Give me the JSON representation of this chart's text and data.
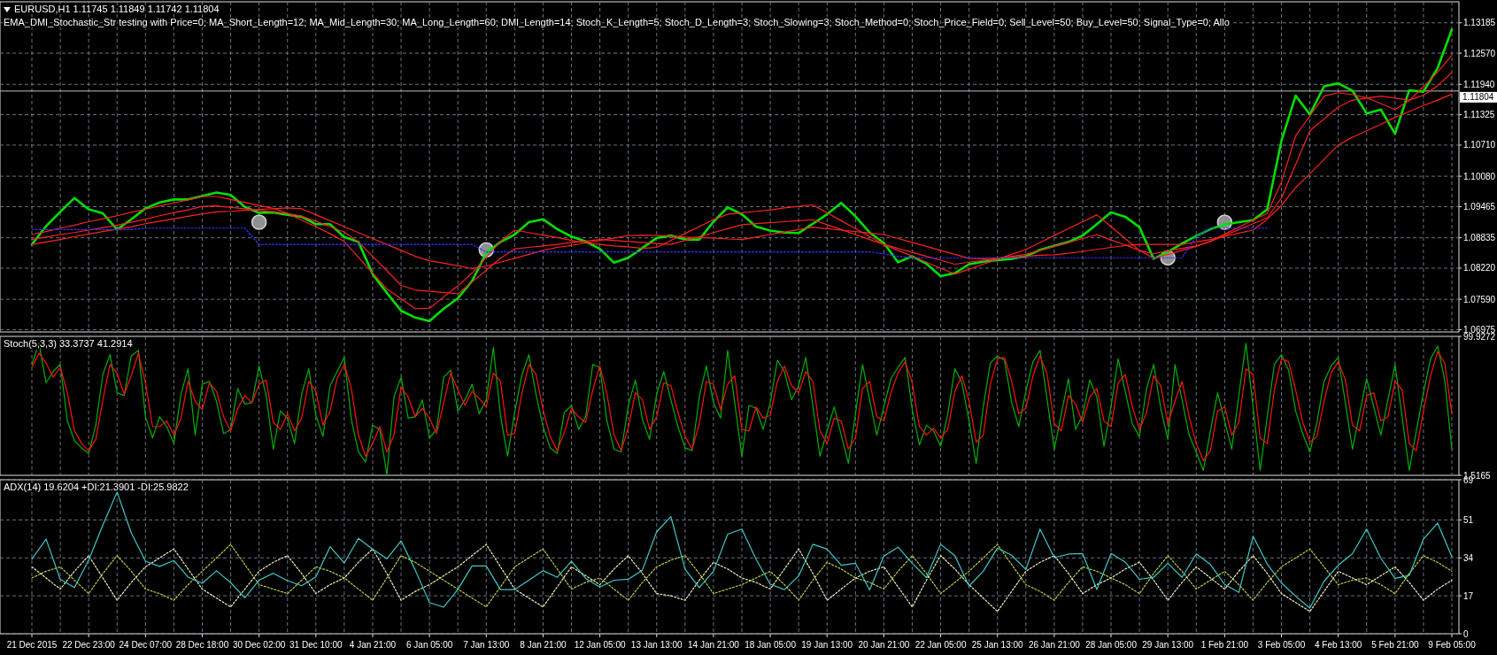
{
  "chart_data": [
    {
      "type": "line",
      "title": "EURUSD,H1 1.11745 1.11849 1.11742 1.11804",
      "subtitle": "EMA_DMI_Stochastic_Str testing with Price=0; MA_Short_Length=12; MA_Mid_Length=30; MA_Long_Length=60; DMI_Length=14; Stoch_K_Length=5; Stoch_D_Length=3; Stoch_Slowing=3; Stoch_Method=0; Stoch_Price_Field=0; Sell_Level=50; Buy_Level=50; Signal_Type=0; Allo",
      "ylim": [
        1.0693,
        1.1361
      ],
      "grid": true,
      "tick_labels": "y",
      "yticks": [
        1.06975,
        {
          "value": 1.0759,
          "label": "1.07590"
        },
        {
          "value": 1.0822,
          "label": "1.08220"
        },
        1.08835,
        1.09465,
        {
          "value": 1.1008,
          "label": "1.10080"
        },
        {
          "value": 1.1071,
          "label": "1.10710"
        },
        1.11325,
        {
          "value": 1.1194,
          "label": "1.11940"
        },
        {
          "value": 1.1257,
          "label": "1.12570"
        },
        1.13185
      ],
      "ref_lines": [
        {
          "axis": "y",
          "value": 1.11804,
          "label": "1.11804",
          "color": "#c0c0c0"
        }
      ],
      "series": [
        {
          "type": "line",
          "color": "#00e000",
          "values": [
            1.087,
            1.0907,
            1.0936,
            1.0964,
            1.0941,
            1.0933,
            1.09,
            1.0921,
            1.0943,
            1.0955,
            1.0961,
            1.0961,
            1.0968,
            1.0975,
            1.097,
            1.0946,
            1.0934,
            1.0935,
            1.093,
            1.0926,
            1.0911,
            1.0911,
            1.0885,
            1.0875,
            1.081,
            1.0772,
            1.0736,
            1.0722,
            1.0715,
            1.074,
            1.0761,
            1.0796,
            1.0853,
            1.0875,
            1.089,
            1.0915,
            1.0921,
            1.0901,
            1.0886,
            1.0876,
            1.0861,
            1.0833,
            1.0843,
            1.0863,
            1.0883,
            1.0888,
            1.088,
            1.088,
            1.0916,
            1.0945,
            1.0931,
            1.0906,
            1.0898,
            1.0894,
            1.0893,
            1.0912,
            1.0931,
            1.0954,
            1.0927,
            1.0894,
            1.0873,
            1.0834,
            1.0846,
            1.0831,
            1.0806,
            1.0812,
            1.083,
            1.0835,
            1.0838,
            1.0841,
            1.0846,
            1.0859,
            1.0867,
            1.0875,
            1.0888,
            1.0911,
            1.0935,
            1.0926,
            1.0905,
            1.0841,
            1.0855,
            1.0872,
            1.0887,
            1.0901,
            1.091,
            1.0915,
            1.0919,
            1.0941,
            1.108,
            1.1171,
            1.1133,
            1.119,
            1.1196,
            1.1181,
            1.1135,
            1.1143,
            1.1094,
            1.1182,
            1.1179,
            1.1227,
            1.1305
          ]
        },
        {
          "type": "line",
          "color": "#ff2020",
          "values": [
            1.087,
            1.0875,
            1.088,
            1.0886,
            1.0891,
            1.0896,
            1.0901,
            1.0906,
            1.0912,
            1.0917,
            1.0922,
            1.0927,
            1.0932,
            1.0936,
            1.0937,
            1.0939,
            1.0941,
            1.0942,
            1.0944,
            1.0942,
            1.093,
            1.0918,
            1.0906,
            1.0894,
            1.0882,
            1.087,
            1.0858,
            1.0846,
            1.0837,
            1.0832,
            1.0827,
            1.0821,
            1.0826,
            1.0834,
            1.0842,
            1.085,
            1.0858,
            1.0864,
            1.0868,
            1.0873,
            1.0878,
            1.0883,
            1.0888,
            1.0889,
            1.0888,
            1.0887,
            1.0885,
            1.0884,
            1.0883,
            1.0881,
            1.088,
            1.0885,
            1.089,
            1.0895,
            1.09,
            1.0905,
            1.0902,
            1.0899,
            1.0896,
            1.0893,
            1.089,
            1.0882,
            1.0874,
            1.0866,
            1.0858,
            1.085,
            1.0842,
            1.0841,
            1.0843,
            1.0844,
            1.0846,
            1.0848,
            1.0849,
            1.0852,
            1.0856,
            1.086,
            1.0864,
            1.0868,
            1.087,
            1.087,
            1.087,
            1.087,
            1.0875,
            1.088,
            1.0886,
            1.0893,
            1.0899,
            1.0921,
            1.0949,
            1.0985,
            1.1013,
            1.1042,
            1.1071,
            1.1087,
            1.11,
            1.1113,
            1.1127,
            1.1139,
            1.1151,
            1.1162,
            1.1174
          ]
        },
        {
          "type": "line",
          "color": "#ff2020",
          "values": [
            1.088,
            1.0885,
            1.089,
            1.0894,
            1.0899,
            1.0904,
            1.0909,
            1.0915,
            1.0921,
            1.0928,
            1.0934,
            1.094,
            1.0947,
            1.0948,
            1.0945,
            1.0942,
            1.0939,
            1.0936,
            1.0933,
            1.0927,
            1.0917,
            1.0906,
            1.0895,
            1.0875,
            1.0846,
            1.0817,
            1.0787,
            1.0778,
            1.0775,
            1.0773,
            1.077,
            1.0794,
            1.0818,
            1.0842,
            1.0861,
            1.0864,
            1.0867,
            1.087,
            1.0874,
            1.0877,
            1.088,
            1.0878,
            1.0876,
            1.0874,
            1.0872,
            1.087,
            1.0878,
            1.0886,
            1.0894,
            1.0902,
            1.091,
            1.0912,
            1.0914,
            1.0916,
            1.0918,
            1.092,
            1.091,
            1.09,
            1.089,
            1.088,
            1.087,
            1.0862,
            1.0854,
            1.0846,
            1.0838,
            1.083,
            1.0834,
            1.0838,
            1.0842,
            1.0846,
            1.085,
            1.0858,
            1.0866,
            1.0874,
            1.0882,
            1.089,
            1.0879,
            1.0869,
            1.0858,
            1.0851,
            1.0857,
            1.0862,
            1.0867,
            1.0876,
            1.0888,
            1.09,
            1.0912,
            1.0924,
            1.0964,
            1.1032,
            1.11,
            1.1124,
            1.1148,
            1.1162,
            1.1166,
            1.117,
            1.1166,
            1.1162,
            1.1172,
            1.1191,
            1.1218
          ]
        },
        {
          "type": "line",
          "color": "#ff2020",
          "values": [
            1.089,
            1.0896,
            1.0903,
            1.0909,
            1.0916,
            1.0922,
            1.0928,
            1.0935,
            1.0941,
            1.0948,
            1.0954,
            1.096,
            1.0967,
            1.0967,
            1.0961,
            1.0955,
            1.0949,
            1.0943,
            1.0933,
            1.0919,
            1.0906,
            1.0892,
            1.0876,
            1.0844,
            1.0812,
            1.078,
            1.076,
            1.074,
            1.0741,
            1.0764,
            1.0786,
            1.0812,
            1.0844,
            1.0876,
            1.0899,
            1.0894,
            1.0889,
            1.0884,
            1.0878,
            1.0873,
            1.087,
            1.0867,
            1.0865,
            1.0862,
            1.0864,
            1.0878,
            1.0892,
            1.0906,
            1.092,
            1.0931,
            1.0934,
            1.0937,
            1.094,
            1.0944,
            1.0947,
            1.095,
            1.0934,
            1.0918,
            1.0902,
            1.0886,
            1.087,
            1.0858,
            1.0846,
            1.0834,
            1.0822,
            1.081,
            1.082,
            1.083,
            1.084,
            1.085,
            1.086,
            1.0874,
            1.0888,
            1.0902,
            1.0916,
            1.093,
            1.0906,
            1.0882,
            1.0858,
            1.0842,
            1.085,
            1.0858,
            1.0866,
            1.0877,
            1.0891,
            1.0905,
            1.0919,
            1.0933,
            1.0996,
            1.109,
            1.113,
            1.117,
            1.1177,
            1.1173,
            1.1167,
            1.1155,
            1.1143,
            1.1161,
            1.1189,
            1.1219,
            1.1253
          ]
        },
        {
          "type": "line",
          "color": "#3030ff",
          "line_style": "dotted",
          "values": [
            1.09,
            1.09,
            1.09,
            1.09,
            1.09,
            1.09,
            1.09,
            1.09,
            1.0903,
            1.0903,
            1.0903,
            1.0903,
            1.0903,
            1.0903,
            1.0903,
            1.0903,
            1.087,
            1.087,
            1.087,
            1.087,
            1.087,
            1.087,
            1.087,
            1.087,
            1.087,
            1.087,
            1.087,
            1.087,
            1.087,
            1.087,
            1.087,
            1.087,
            1.0855,
            1.0855,
            1.0855,
            1.0855,
            1.0855,
            1.0855,
            1.0855,
            1.0855,
            1.0855,
            1.0855,
            1.0855,
            1.0855,
            1.0855,
            1.0855,
            1.0855,
            1.0855,
            1.0855,
            1.0855,
            1.0855,
            1.0855,
            1.0855,
            1.0855,
            1.0855,
            1.0855,
            1.0855,
            1.0855,
            1.0855,
            1.0855,
            1.0851,
            1.0846,
            1.0843,
            1.0843,
            1.0843,
            1.0843,
            1.0843,
            1.0843,
            1.0843,
            1.0843,
            1.0843,
            1.0843,
            1.0843,
            1.0843,
            1.0843,
            1.0843,
            1.0843,
            1.0843,
            1.0843,
            1.0843,
            1.0843,
            1.0843,
            1.0886,
            1.0903,
            1.0903,
            1.0903,
            1.0903,
            1.0903,
            null,
            null,
            null,
            null,
            null,
            null,
            null,
            null,
            null,
            null,
            null,
            null,
            null
          ]
        },
        {
          "type": "scatter",
          "color": "#909090",
          "marker": "circle",
          "values": [
            null,
            null,
            null,
            null,
            null,
            null,
            null,
            null,
            null,
            null,
            null,
            null,
            null,
            null,
            null,
            null,
            1.0915,
            null,
            null,
            null,
            null,
            null,
            null,
            null,
            null,
            null,
            null,
            null,
            null,
            null,
            null,
            null,
            1.0859,
            null,
            null,
            null,
            null,
            null,
            null,
            null,
            null,
            null,
            null,
            null,
            null,
            null,
            null,
            null,
            null,
            null,
            null,
            null,
            null,
            null,
            null,
            null,
            null,
            null,
            null,
            null,
            null,
            null,
            null,
            null,
            null,
            null,
            null,
            null,
            null,
            null,
            null,
            null,
            null,
            null,
            null,
            null,
            null,
            null,
            null,
            null,
            1.0843,
            null,
            null,
            null,
            1.0915,
            null,
            null,
            null,
            null,
            null,
            null,
            null,
            null,
            null,
            null,
            null,
            null,
            null,
            null,
            null,
            null
          ]
        }
      ]
    },
    {
      "type": "line",
      "title": "Stoch(5,3,3) 33.3737 41.2914",
      "ylim": [
        1.5165,
        99.9272
      ],
      "grid": "x",
      "tick_labels": "y",
      "yticks": [
        99.9272,
        1.5165
      ],
      "series": [
        {
          "type": "line",
          "color": "#00b000",
          "values": [
            80,
            95,
            67,
            75,
            80,
            40,
            26,
            21,
            17,
            37,
            73,
            87,
            60,
            58,
            86,
            90,
            43,
            28,
            43,
            36,
            24,
            59,
            77,
            30,
            66,
            68,
            54,
            31,
            34,
            63,
            52,
            53,
            79,
            58,
            20,
            47,
            42,
            24,
            59,
            77,
            44,
            29,
            65,
            75,
            85,
            41,
            18,
            11,
            37,
            34,
            2,
            57,
            71,
            42,
            43,
            55,
            28,
            34,
            71,
            76,
            47,
            55,
            66,
            45,
            55,
            92,
            44,
            15,
            46,
            72,
            87,
            59,
            36,
            21,
            17,
            46,
            51,
            34,
            43,
            80,
            78,
            40,
            20,
            18,
            51,
            69,
            41,
            27,
            59,
            75,
            55,
            36,
            21,
            19,
            57,
            79,
            53,
            42,
            90,
            53,
            15,
            51,
            49,
            34,
            53,
            83,
            75,
            55,
            65,
            85,
            51,
            15,
            33,
            50,
            30,
            10,
            45,
            80,
            55,
            30,
            50,
            70,
            78,
            85,
            48,
            23,
            37,
            33,
            22,
            45,
            77,
            67,
            40,
            10,
            50,
            81,
            86,
            83,
            53,
            36,
            61,
            82,
            90,
            55,
            20,
            45,
            70,
            34,
            44,
            69,
            57,
            22,
            50,
            84,
            61,
            38,
            29,
            63,
            80,
            49,
            27,
            80,
            55,
            30,
            18,
            5,
            33,
            60,
            40,
            20,
            58,
            95,
            50,
            5,
            43,
            80,
            87,
            76,
            47,
            31,
            18,
            39,
            68,
            79,
            85,
            53,
            20,
            45,
            70,
            50,
            30,
            55,
            80,
            43,
            5,
            33,
            60,
            84,
            93,
            69,
            20
          ]
        },
        {
          "type": "line",
          "color": "#ff1010",
          "values": [
            78,
            88,
            81,
            71,
            78,
            60,
            33,
            24,
            19,
            27,
            55,
            80,
            74,
            59,
            72,
            88,
            67,
            36,
            36,
            40,
            30,
            42,
            68,
            54,
            48,
            67,
            61,
            43,
            33,
            49,
            58,
            53,
            66,
            69,
            39,
            34,
            45,
            33,
            42,
            68,
            61,
            37,
            47,
            70,
            80,
            63,
            30,
            15,
            24,
            36,
            18,
            30,
            64,
            57,
            43,
            49,
            42,
            31,
            53,
            74,
            62,
            51,
            61,
            56,
            50,
            74,
            68,
            30,
            31,
            59,
            80,
            73,
            48,
            29,
            19,
            32,
            49,
            43,
            39,
            62,
            79,
            59,
            30,
            19,
            35,
            60,
            55,
            34,
            43,
            67,
            65,
            46,
            29,
            20,
            38,
            68,
            66,
            48,
            66,
            72,
            34,
            33,
            50,
            42,
            44,
            68,
            79,
            65,
            60,
            75,
            68,
            33,
            24,
            42,
            40,
            20,
            28,
            63,
            68,
            43,
            40,
            60,
            74,
            82,
            67,
            36,
            30,
            35,
            28,
            34,
            61,
            72,
            54,
            25,
            30,
            66,
            84,
            85,
            68,
            45,
            49,
            72,
            86,
            73,
            38,
            33,
            58,
            52,
            39,
            57,
            63,
            40,
            36,
            67,
            73,
            50,
            34,
            46,
            72,
            65,
            38,
            54,
            68,
            43,
            24,
            12,
            19,
            47,
            50,
            30,
            39,
            77,
            73,
            28,
            24,
            62,
            84,
            82,
            62,
            39,
            25,
            29,
            54,
            74,
            82,
            69,
            37,
            33,
            58,
            60,
            40,
            43,
            68,
            62,
            24,
            19,
            47,
            72,
            89,
            81,
            45
          ]
        }
      ]
    },
    {
      "type": "line",
      "title": "ADX(14) 19.6204 +DI:21.3901 -DI:25.9822",
      "ylim": [
        0,
        69
      ],
      "grid": true,
      "categories": [
        "21 Dec 2015",
        null,
        null,
        null,
        "22 Dec 23:00",
        null,
        null,
        null,
        "24 Dec 07:00",
        null,
        null,
        null,
        "28 Dec 18:00",
        null,
        null,
        null,
        "30 Dec 02:00",
        null,
        null,
        null,
        "31 Dec 10:00",
        null,
        null,
        null,
        "4 Jan 21:00",
        null,
        null,
        null,
        "6 Jan 05:00",
        null,
        null,
        null,
        "7 Jan 13:00",
        null,
        null,
        null,
        "8 Jan 21:00",
        null,
        null,
        null,
        "12 Jan 05:00",
        null,
        null,
        null,
        "13 Jan 13:00",
        null,
        null,
        null,
        "14 Jan 21:00",
        null,
        null,
        null,
        "18 Jan 05:00",
        null,
        null,
        null,
        "19 Jan 13:00",
        null,
        null,
        null,
        "20 Jan 21:00",
        null,
        null,
        null,
        "22 Jan 05:00",
        null,
        null,
        null,
        "25 Jan 13:00",
        null,
        null,
        null,
        "26 Jan 21:00",
        null,
        null,
        null,
        "28 Jan 05:00",
        null,
        null,
        null,
        "29 Jan 13:00",
        null,
        null,
        null,
        "1 Feb 21:00",
        null,
        null,
        null,
        "3 Feb 05:00",
        null,
        null,
        null,
        "4 Feb 13:00",
        null,
        null,
        null,
        "5 Feb 21:00",
        null,
        null,
        null,
        "9 Feb 05:00"
      ],
      "yticks": [
        0,
        17,
        34,
        51,
        69
      ],
      "series": [
        {
          "type": "line",
          "color": "#b8d040",
          "line_style": "dotted",
          "values": [
            25,
            28,
            30,
            24,
            18,
            27,
            35,
            28,
            20,
            18,
            15,
            22,
            28,
            34,
            40,
            31,
            22,
            20,
            18,
            24,
            30,
            28,
            25,
            20,
            15,
            25,
            35,
            32,
            28,
            24,
            20,
            16,
            12,
            21,
            30,
            34,
            38,
            29,
            20,
            23,
            25,
            20,
            15,
            23,
            30,
            33,
            35,
            27,
            18,
            20,
            22,
            25,
            28,
            22,
            15,
            24,
            32,
            29,
            25,
            23,
            20,
            28,
            35,
            27,
            18,
            23,
            28,
            34,
            40,
            31,
            22,
            19,
            15,
            23,
            30,
            28,
            25,
            22,
            18,
            27,
            35,
            28,
            20,
            24,
            28,
            22,
            15,
            23,
            30,
            34,
            38,
            30,
            22,
            24,
            25,
            22,
            18,
            27,
            35,
            32,
            28
          ]
        },
        {
          "type": "line",
          "color": "#f0f0c0",
          "line_style": "dotted",
          "values": [
            30,
            25,
            20,
            28,
            35,
            25,
            15,
            23,
            30,
            34,
            38,
            29,
            20,
            16,
            12,
            20,
            28,
            32,
            35,
            27,
            18,
            22,
            25,
            32,
            38,
            27,
            15,
            19,
            22,
            26,
            30,
            35,
            40,
            30,
            20,
            16,
            12,
            21,
            30,
            26,
            22,
            29,
            35,
            27,
            18,
            17,
            15,
            24,
            32,
            29,
            25,
            23,
            20,
            29,
            38,
            27,
            15,
            20,
            25,
            28,
            30,
            21,
            12,
            24,
            35,
            29,
            22,
            16,
            10,
            19,
            28,
            32,
            35,
            27,
            18,
            22,
            25,
            29,
            32,
            24,
            15,
            23,
            30,
            25,
            20,
            28,
            35,
            27,
            18,
            14,
            10,
            19,
            28,
            25,
            22,
            26,
            30,
            23,
            15,
            20,
            24
          ]
        },
        {
          "type": "line",
          "color": "#40c8c8",
          "values": [
            33.4,
            42.4,
            24.4,
            20.7,
            33,
            48.7,
            63.5,
            45.2,
            32.5,
            30.2,
            32.8,
            25.4,
            22.6,
            28.2,
            22.9,
            16.1,
            24,
            27.1,
            23.8,
            21.5,
            25.5,
            39,
            31.7,
            42.7,
            37.9,
            33.6,
            41.6,
            28.5,
            14,
            11.9,
            19.9,
            30.4,
            30.4,
            19.8,
            19.8,
            24,
            28.3,
            25.3,
            32.5,
            24.8,
            20.9,
            24,
            24.4,
            28.6,
            45.7,
            52.5,
            28.9,
            20.7,
            28,
            44.6,
            46.9,
            33.4,
            22.2,
            19.8,
            25.9,
            40.1,
            37.9,
            30.7,
            31.6,
            19.6,
            34.8,
            38.8,
            31.6,
            25.2,
            40.1,
            35,
            21.4,
            28,
            38.4,
            35.2,
            28.8,
            46.9,
            34.1,
            35.7,
            35.9,
            19.8,
            36,
            32.1,
            24.4,
            25.3,
            31.6,
            25.3,
            35.8,
            31,
            22.1,
            18.5,
            43.7,
            31.2,
            22.8,
            16.8,
            11.5,
            23.5,
            30.7,
            35.9,
            46.9,
            33.8,
            24.8,
            26.1,
            42.4,
            49.6,
            34.5
          ]
        }
      ]
    }
  ]
}
